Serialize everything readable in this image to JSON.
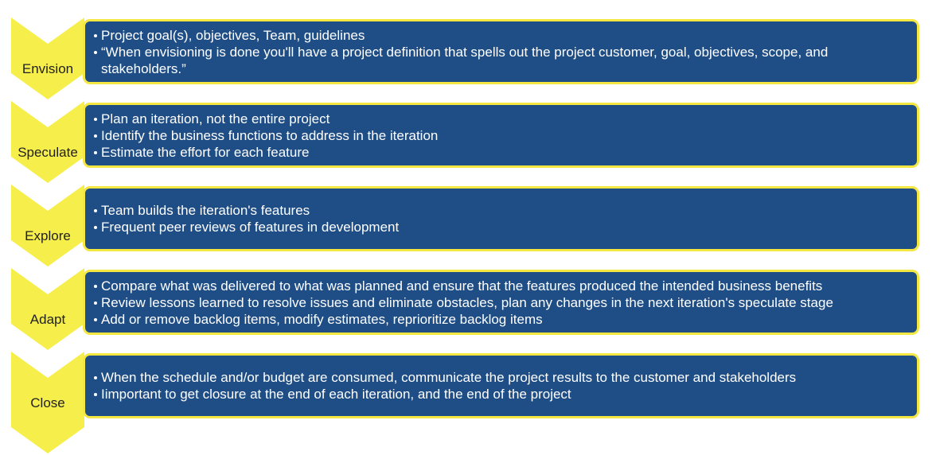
{
  "colors": {
    "chevron": "#f6ee4a",
    "box_fill": "#1f4e86",
    "box_border": "#f5e742",
    "box_text": "#ffffff",
    "label_text": "#222222"
  },
  "stages": [
    {
      "label": "Envision",
      "bullets": [
        "Project goal(s), objectives, Team, guidelines",
        "“When envisioning is done you'll have a project definition that spells out the project customer, goal, objectives, scope, and stakeholders.”"
      ]
    },
    {
      "label": "Speculate",
      "bullets": [
        "Plan an iteration, not the entire project",
        "Identify the business functions to address in the iteration",
        "Estimate the effort for each feature"
      ]
    },
    {
      "label": "Explore",
      "bullets": [
        "Team builds the iteration's features",
        "Frequent peer reviews of features in development"
      ]
    },
    {
      "label": "Adapt",
      "bullets": [
        "Compare what was delivered to what was planned and ensure that the features produced the intended business benefits",
        "Review lessons learned to resolve issues and eliminate obstacles, plan any changes in the next iteration's speculate stage",
        "Add or remove backlog items, modify estimates, reprioritize backlog items"
      ]
    },
    {
      "label": "Close",
      "bullets": [
        "When the schedule and/or budget are consumed, communicate the project results to the customer and stakeholders",
        "Iimportant to get closure at the end of each iteration, and the end of the project"
      ]
    }
  ]
}
